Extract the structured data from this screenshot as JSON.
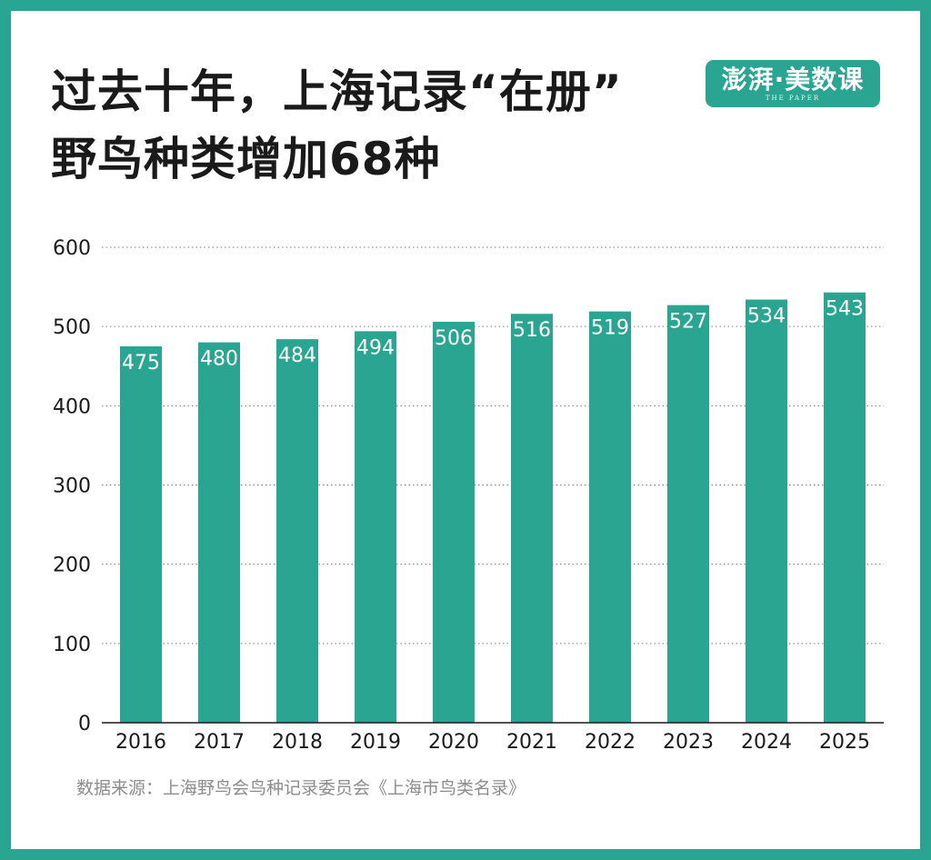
{
  "title": {
    "line1": "过去十年，上海记录“在册”",
    "line2": "野鸟种类增加68种"
  },
  "logo": {
    "text": "澎湃·美数课",
    "subtext": "THE PAPER"
  },
  "source": "数据来源：上海野鸟会鸟种记录委员会《上海市鸟类名录》",
  "colors": {
    "bar": "#2aa592",
    "border": "#2aa592",
    "text": "#1a1a1a",
    "grid": "#7a7a7a",
    "source": "#8c8c8c"
  },
  "chart_data": {
    "type": "bar",
    "categories": [
      "2016",
      "2017",
      "2018",
      "2019",
      "2020",
      "2021",
      "2022",
      "2023",
      "2024",
      "2025"
    ],
    "values": [
      475,
      480,
      484,
      494,
      506,
      516,
      519,
      527,
      534,
      543
    ],
    "yticks": [
      "0",
      "100",
      "200",
      "300",
      "400",
      "500",
      "600"
    ],
    "ylim": [
      0,
      600
    ],
    "grid": "horizontal-dotted",
    "data_labels": "inside-top"
  }
}
